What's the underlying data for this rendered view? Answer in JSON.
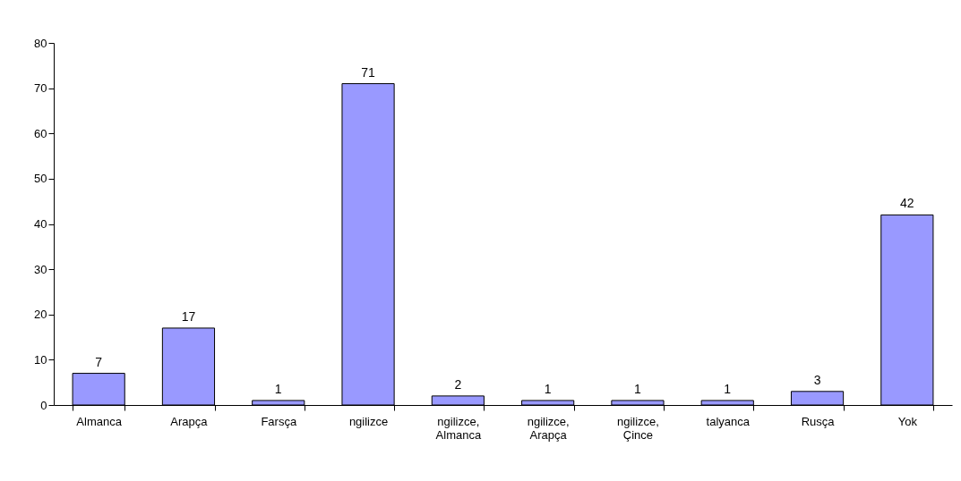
{
  "chart_data": {
    "type": "bar",
    "categories": [
      "Almanca",
      "Arapça",
      "Farsça",
      "ngilizce",
      "ngilizce, Almanca",
      "ngilizce, Arapça",
      "ngilizce, Çince",
      "talyanca",
      "Rusça",
      "Yok"
    ],
    "values": [
      7,
      17,
      1,
      71,
      2,
      1,
      1,
      1,
      3,
      42
    ],
    "color": "#9999ff",
    "ylim": [
      0,
      80
    ],
    "yticks": [
      0,
      10,
      20,
      30,
      40,
      50,
      60,
      70,
      80
    ],
    "grid": false,
    "data_labels": true
  }
}
